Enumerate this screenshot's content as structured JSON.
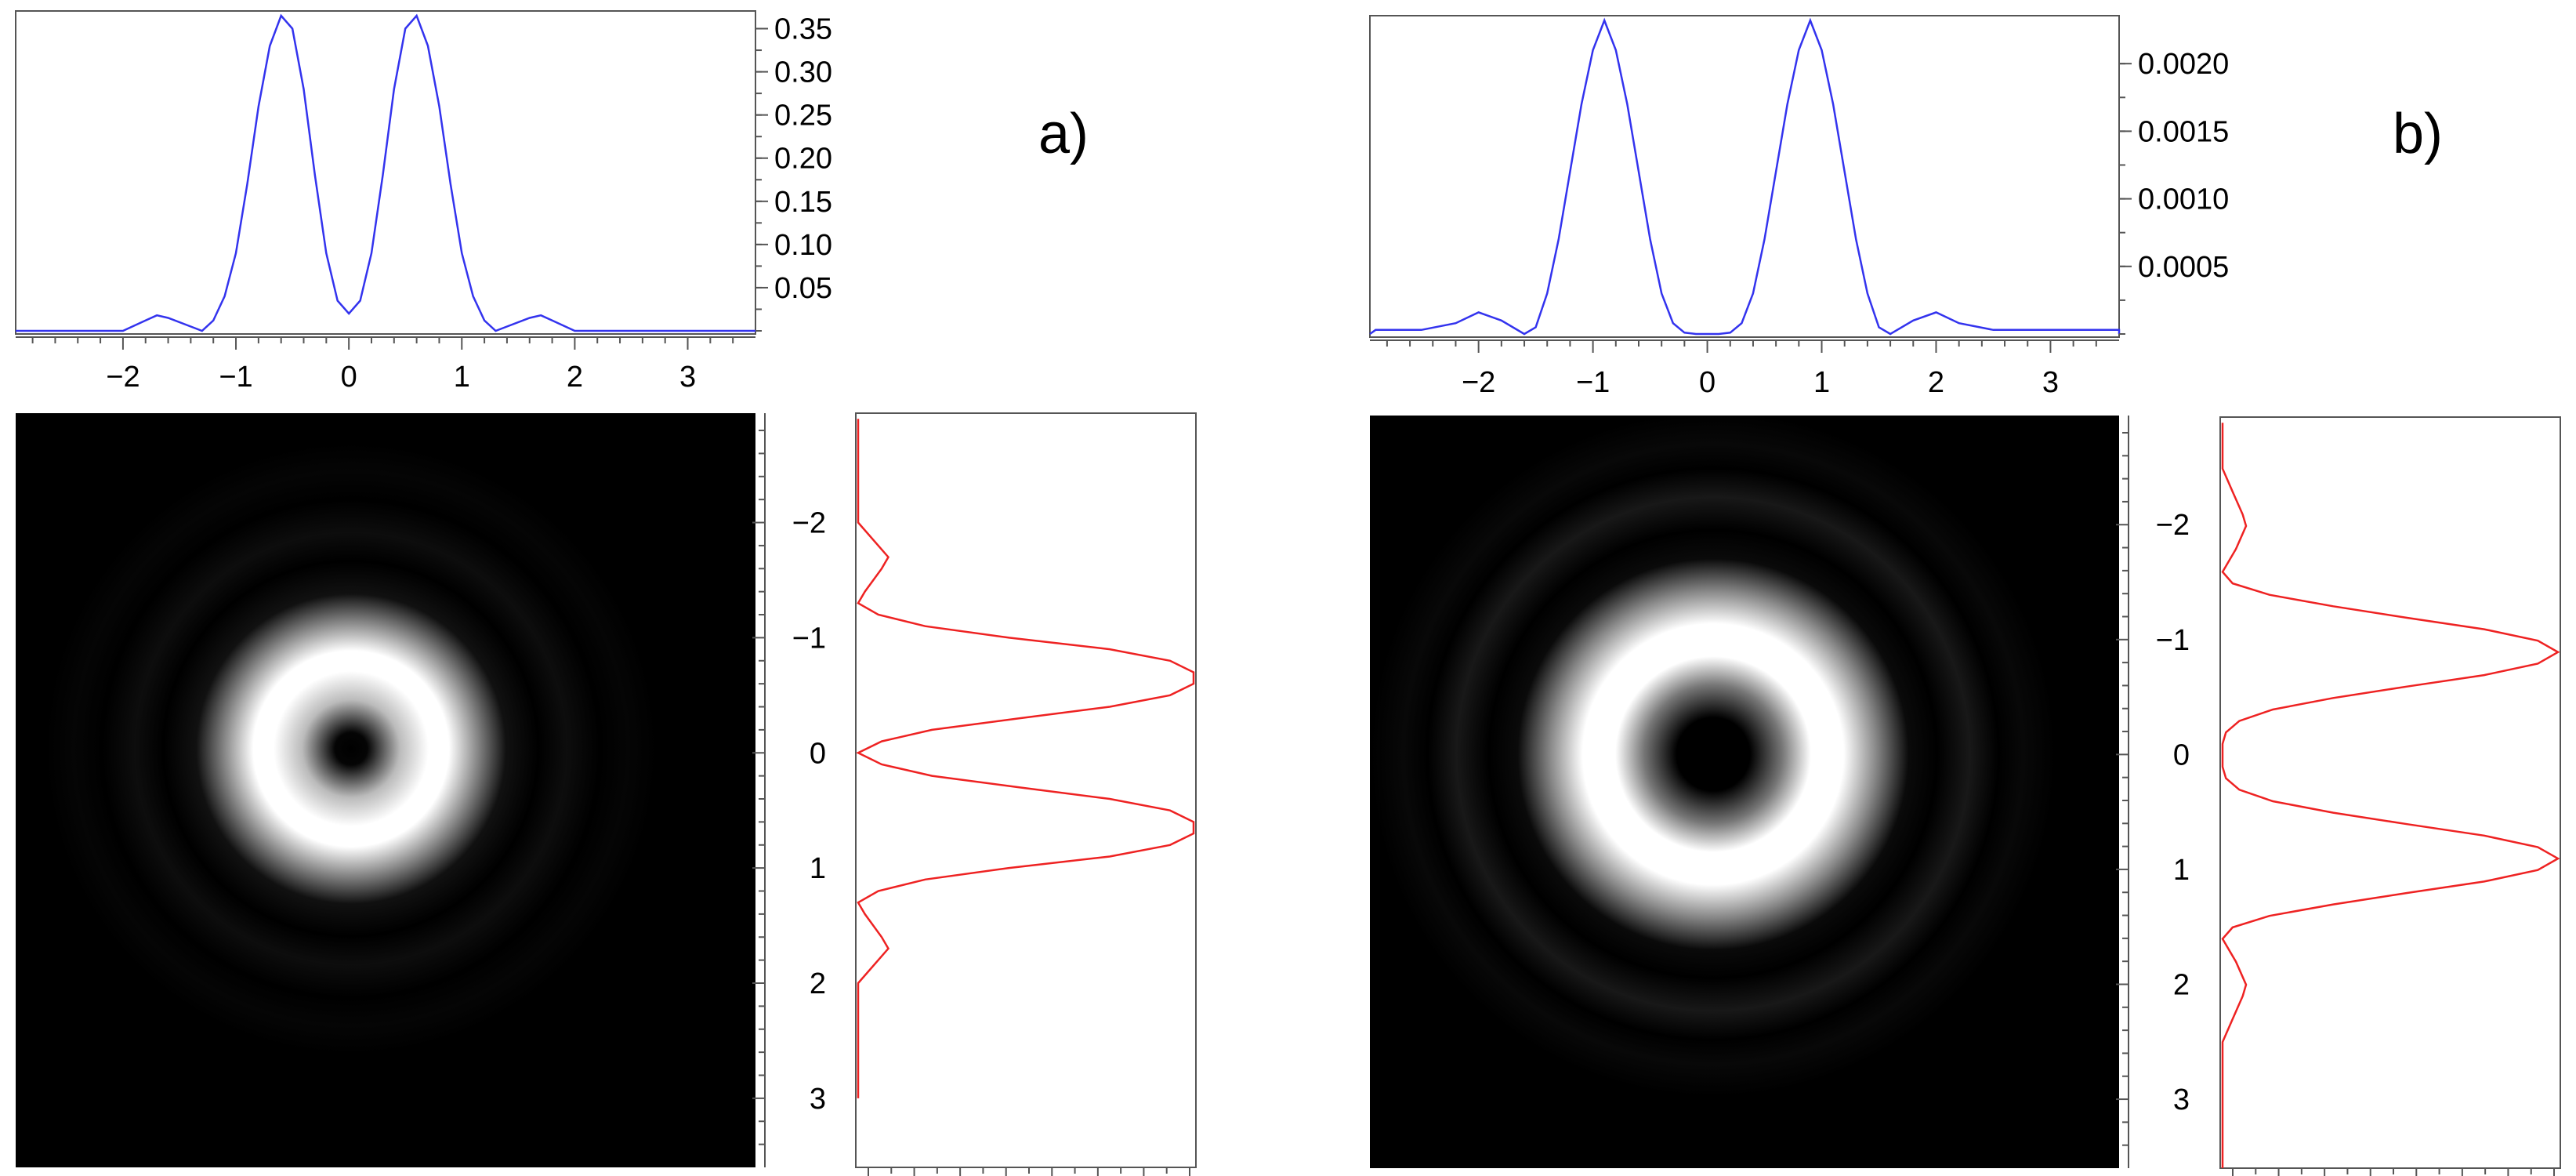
{
  "figure": {
    "panels": [
      {
        "label": "a)",
        "top_profile": {
          "y_tick_labels": [
            "0.35",
            "0.30",
            "0.25",
            "0.20",
            "0.15",
            "0.10",
            "0.05"
          ],
          "y_ticks": [
            0.35,
            0.3,
            0.25,
            0.2,
            0.15,
            0.1,
            0.05
          ]
        },
        "x_tick_labels": [
          "−2",
          "−1",
          "0",
          "1",
          "2",
          "3"
        ],
        "x_ticks": [
          -2,
          -1,
          0,
          1,
          2,
          3
        ],
        "y_tick_labels": [
          "−2",
          "−1",
          "0",
          "1",
          "2",
          "3"
        ],
        "y_ticks": [
          -2,
          -1,
          0,
          1,
          2,
          3
        ]
      },
      {
        "label": "b)",
        "top_profile": {
          "y_tick_labels": [
            "0.0020",
            "0.0015",
            "0.0010",
            "0.0005"
          ],
          "y_ticks": [
            0.002,
            0.0015,
            0.001,
            0.0005
          ]
        },
        "x_tick_labels": [
          "−2",
          "−1",
          "0",
          "1",
          "2",
          "3"
        ],
        "x_ticks": [
          -2,
          -1,
          0,
          1,
          2,
          3
        ],
        "y_tick_labels": [
          "−2",
          "−1",
          "0",
          "1",
          "2",
          "3"
        ],
        "y_ticks": [
          -2,
          -1,
          0,
          1,
          2,
          3
        ]
      }
    ]
  },
  "colors": {
    "top_profile_line": "#3333ee",
    "side_profile_line": "#ee2222",
    "image_background": "#000000",
    "ring": "#ffffff"
  },
  "chart_data": [
    {
      "type": "line",
      "panel": "a)",
      "role": "horizontal intensity profile",
      "x_range": [
        -2.95,
        3.6
      ],
      "ylim": [
        0,
        0.365
      ],
      "x": [
        -2.9,
        -2.5,
        -2.0,
        -1.8,
        -1.7,
        -1.6,
        -1.4,
        -1.3,
        -1.2,
        -1.1,
        -1.0,
        -0.9,
        -0.8,
        -0.7,
        -0.6,
        -0.5,
        -0.4,
        -0.3,
        -0.2,
        -0.1,
        0.0,
        0.1,
        0.2,
        0.3,
        0.4,
        0.5,
        0.6,
        0.7,
        0.8,
        0.9,
        1.0,
        1.1,
        1.2,
        1.3,
        1.4,
        1.6,
        1.7,
        1.8,
        2.0,
        2.5,
        3.0,
        3.6
      ],
      "y": [
        0.0,
        0.0,
        0.0,
        0.012,
        0.018,
        0.015,
        0.005,
        0.0,
        0.012,
        0.04,
        0.09,
        0.17,
        0.26,
        0.33,
        0.365,
        0.35,
        0.28,
        0.18,
        0.09,
        0.035,
        0.02,
        0.035,
        0.09,
        0.18,
        0.28,
        0.35,
        0.365,
        0.33,
        0.26,
        0.17,
        0.09,
        0.04,
        0.012,
        0.0,
        0.005,
        0.015,
        0.018,
        0.012,
        0.0,
        0.0,
        0.0,
        0.0
      ]
    },
    {
      "type": "line",
      "panel": "a)",
      "role": "vertical intensity profile",
      "y_range": [
        -2.95,
        3.6
      ],
      "y_axis_inverted": true,
      "y": [
        -2.9,
        -2.0,
        -1.8,
        -1.7,
        -1.6,
        -1.4,
        -1.3,
        -1.2,
        -1.1,
        -1.0,
        -0.9,
        -0.8,
        -0.7,
        -0.6,
        -0.5,
        -0.4,
        -0.3,
        -0.2,
        -0.1,
        0.0,
        0.1,
        0.2,
        0.3,
        0.4,
        0.5,
        0.6,
        0.7,
        0.8,
        0.9,
        1.0,
        1.1,
        1.2,
        1.3,
        1.4,
        1.6,
        1.7,
        1.8,
        2.0,
        3.0
      ],
      "x": [
        0.0,
        0.0,
        0.06,
        0.09,
        0.07,
        0.02,
        0.0,
        0.06,
        0.2,
        0.45,
        0.75,
        0.93,
        1.0,
        1.0,
        0.93,
        0.75,
        0.48,
        0.22,
        0.07,
        0.0,
        0.07,
        0.22,
        0.48,
        0.75,
        0.93,
        1.0,
        1.0,
        0.93,
        0.75,
        0.45,
        0.2,
        0.06,
        0.0,
        0.02,
        0.07,
        0.09,
        0.06,
        0.0,
        0.0
      ]
    },
    {
      "type": "line",
      "panel": "b)",
      "role": "horizontal intensity profile",
      "x_range": [
        -2.95,
        3.6
      ],
      "ylim": [
        0,
        0.00232
      ],
      "x": [
        -2.9,
        -2.5,
        -2.2,
        -2.0,
        -1.8,
        -1.6,
        -1.5,
        -1.4,
        -1.3,
        -1.2,
        -1.1,
        -1.0,
        -0.9,
        -0.8,
        -0.7,
        -0.6,
        -0.5,
        -0.4,
        -0.3,
        -0.2,
        -0.1,
        0.0,
        0.1,
        0.2,
        0.3,
        0.4,
        0.5,
        0.6,
        0.7,
        0.8,
        0.9,
        1.0,
        1.1,
        1.2,
        1.3,
        1.4,
        1.5,
        1.6,
        1.8,
        2.0,
        2.2,
        2.5,
        3.0,
        3.6
      ],
      "y": [
        3e-05,
        3e-05,
        8e-05,
        0.00016,
        0.0001,
        0.0,
        5e-05,
        0.0003,
        0.0007,
        0.0012,
        0.0017,
        0.0021,
        0.00232,
        0.0021,
        0.0017,
        0.0012,
        0.0007,
        0.0003,
        8e-05,
        1e-05,
        0.0,
        0.0,
        0.0,
        1e-05,
        8e-05,
        0.0003,
        0.0007,
        0.0012,
        0.0017,
        0.0021,
        0.00232,
        0.0021,
        0.0017,
        0.0012,
        0.0007,
        0.0003,
        5e-05,
        0.0,
        0.0001,
        0.00016,
        8e-05,
        3e-05,
        3e-05,
        3e-05
      ]
    },
    {
      "type": "line",
      "panel": "b)",
      "role": "vertical intensity profile",
      "y_range": [
        -2.95,
        3.6
      ],
      "y_axis_inverted": true,
      "y": [
        -2.9,
        -2.5,
        -2.3,
        -2.1,
        -2.0,
        -1.8,
        -1.6,
        -1.5,
        -1.4,
        -1.3,
        -1.2,
        -1.1,
        -1.0,
        -0.9,
        -0.8,
        -0.7,
        -0.6,
        -0.5,
        -0.4,
        -0.3,
        -0.2,
        -0.1,
        0.0,
        0.1,
        0.2,
        0.3,
        0.4,
        0.5,
        0.6,
        0.7,
        0.8,
        0.9,
        1.0,
        1.1,
        1.2,
        1.3,
        1.4,
        1.5,
        1.6,
        1.8,
        2.0,
        2.1,
        2.3,
        2.5,
        3.0,
        3.6
      ],
      "x": [
        0.0,
        0.0,
        0.03,
        0.06,
        0.07,
        0.04,
        0.0,
        0.03,
        0.14,
        0.33,
        0.55,
        0.78,
        0.94,
        1.0,
        0.94,
        0.78,
        0.55,
        0.33,
        0.15,
        0.05,
        0.01,
        0.0,
        0.0,
        0.0,
        0.01,
        0.05,
        0.15,
        0.33,
        0.55,
        0.78,
        0.94,
        1.0,
        0.94,
        0.78,
        0.55,
        0.33,
        0.14,
        0.03,
        0.0,
        0.04,
        0.07,
        0.06,
        0.03,
        0.0,
        0.0,
        0.0
      ]
    }
  ]
}
